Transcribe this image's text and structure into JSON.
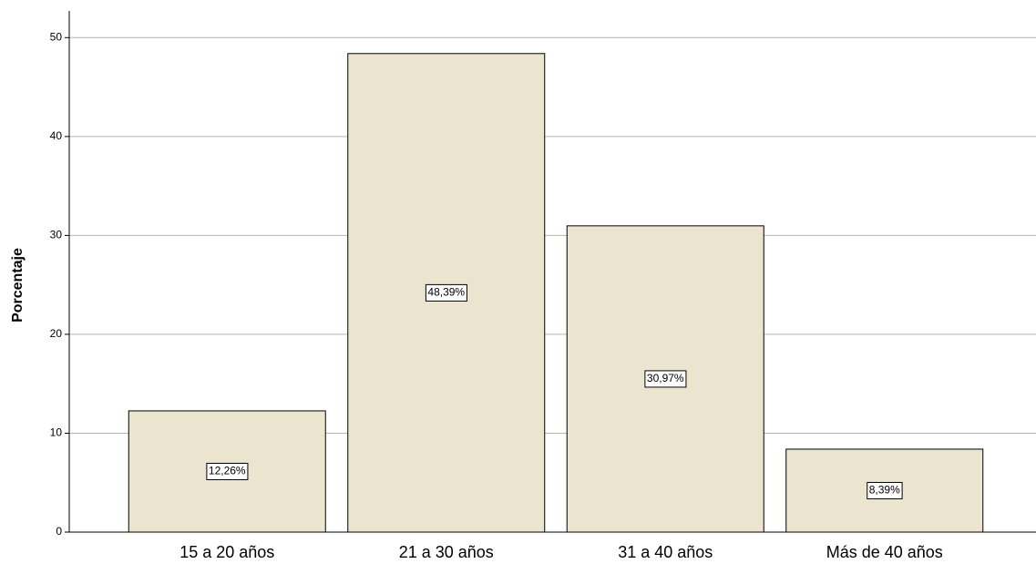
{
  "chart_data": {
    "type": "bar",
    "y_label": "Porcentaje",
    "categories": [
      "15 a 20 años",
      "21 a 30 años",
      "31 a 40 años",
      "Más de 40 años"
    ],
    "values": [
      12.26,
      48.39,
      30.97,
      8.39
    ],
    "value_labels": [
      "12,26%",
      "48,39%",
      "30,97%",
      "8,39%"
    ],
    "color": "#ebe5d0",
    "ylim": [
      0,
      52.7
    ],
    "yticks": [
      0,
      10,
      20,
      30,
      40,
      50
    ],
    "grid": true
  }
}
